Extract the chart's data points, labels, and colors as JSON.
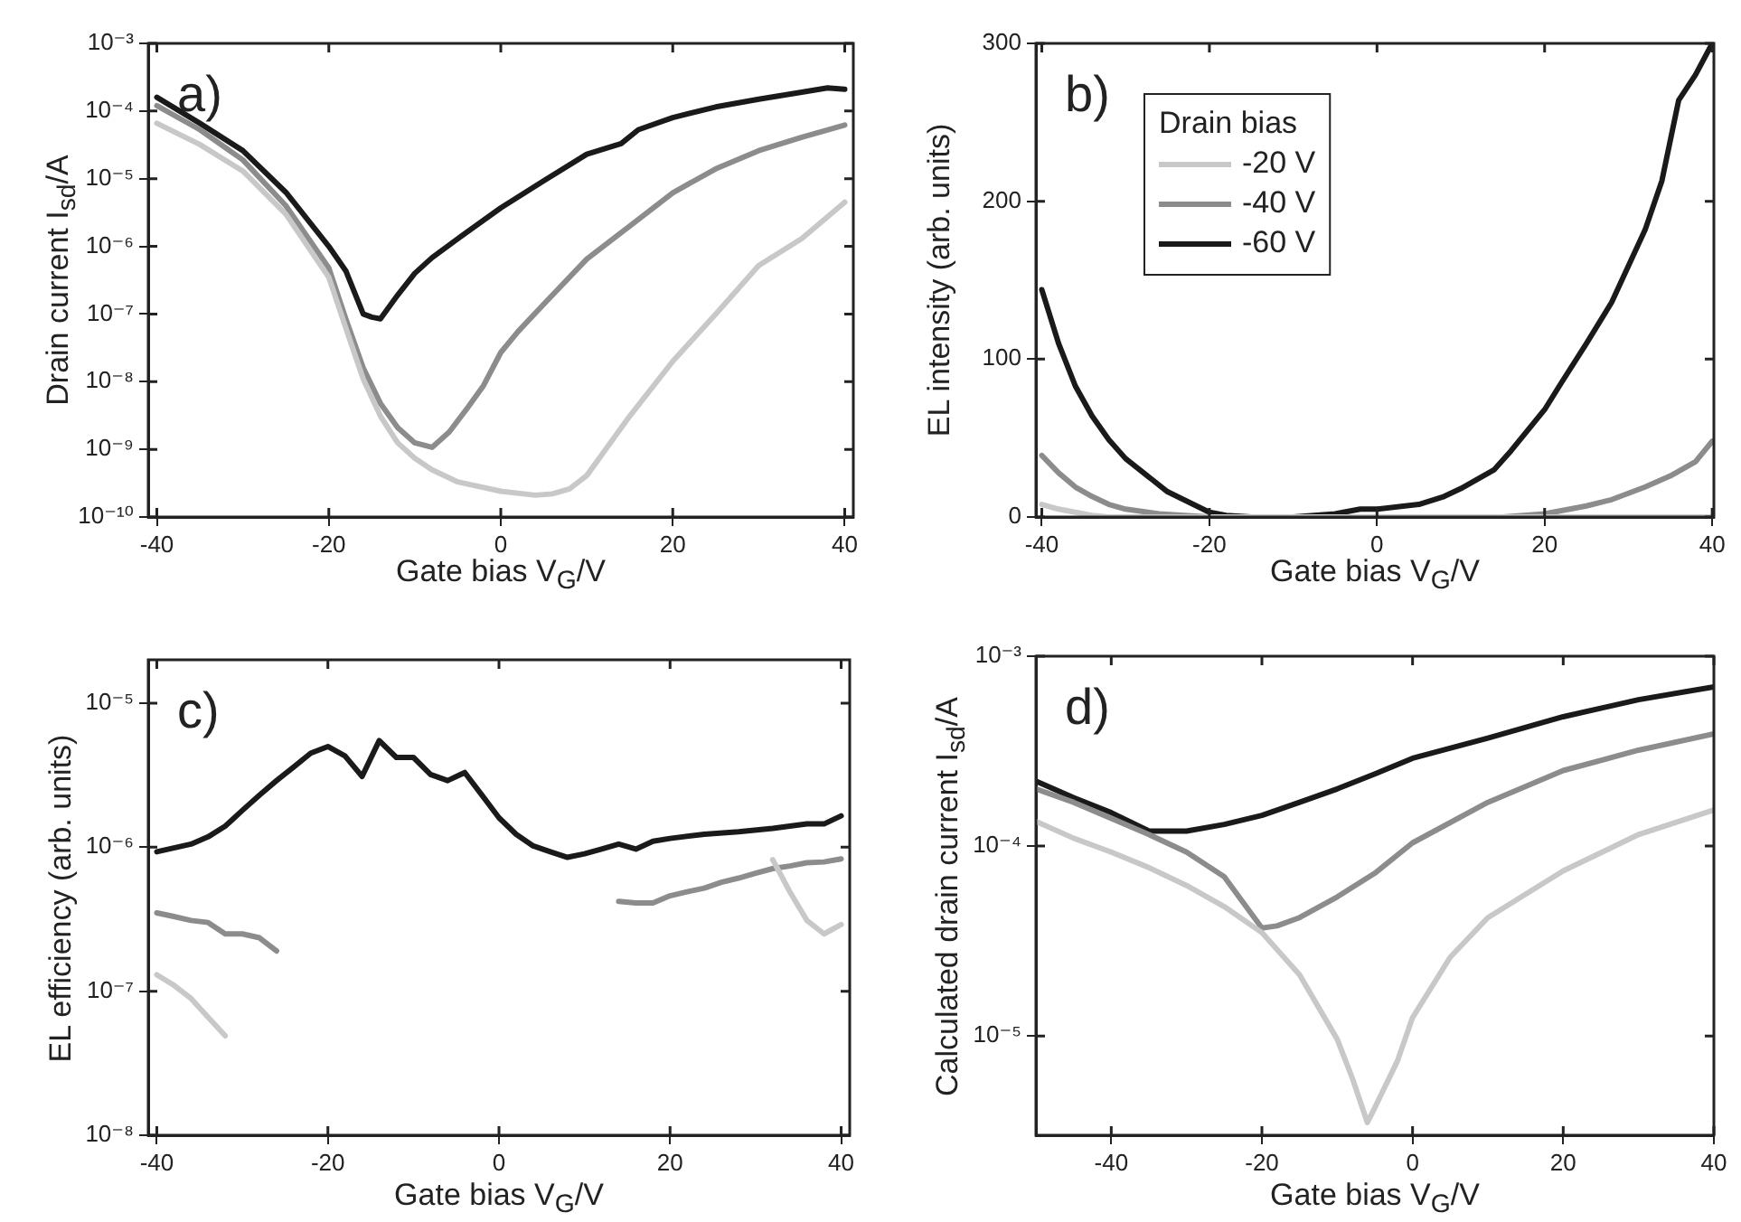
{
  "chart_data": [
    {
      "type": "line",
      "xlabel": "Gate bias V$_{G}$/V",
      "ylabel": "Drain current I$_{sd}$/A",
      "annotations": [
        "a)"
      ],
      "log": "y",
      "xlim": [
        -41,
        41
      ],
      "ylim": [
        1e-10,
        0.001
      ],
      "xticks": [
        -40,
        -20,
        0,
        20,
        40
      ],
      "yticks": [
        {
          "value": 1e-10,
          "label": "10⁻¹⁰"
        },
        {
          "value": 1e-09,
          "label": "10⁻⁹"
        },
        {
          "value": 1e-08,
          "label": "10⁻⁸"
        },
        {
          "value": 1e-07,
          "label": "10⁻⁷"
        },
        {
          "value": 1e-06,
          "label": "10⁻⁶"
        },
        {
          "value": 1e-05,
          "label": "10⁻⁵"
        },
        {
          "value": 0.0001,
          "label": "10⁻⁴"
        },
        {
          "value": 0.001,
          "label": "10⁻³"
        }
      ],
      "series": [
        {
          "color": "#c8c8c8",
          "x": [
            -40,
            -35,
            -30,
            -25,
            -20,
            -18,
            -16,
            -14,
            -12,
            -10,
            -8,
            -5,
            0,
            4,
            6,
            8,
            10,
            12,
            15,
            20,
            25,
            30,
            35,
            40
          ],
          "values": [
            6.6e-05,
            3.2e-05,
            1.3e-05,
            3e-06,
            3.5e-07,
            6.1e-08,
            1.1e-08,
            3.1e-09,
            1.25e-09,
            7.4e-10,
            5e-10,
            3.3e-10,
            2.4e-10,
            2.1e-10,
            2.2e-10,
            2.6e-10,
            4.1e-10,
            9.2e-10,
            3.1e-09,
            2e-08,
            1e-07,
            5.2e-07,
            1.3e-06,
            4.5e-06
          ]
        },
        {
          "color": "#8c8c8c",
          "x": [
            -40,
            -35,
            -30,
            -25,
            -20,
            -18,
            -16,
            -14,
            -12,
            -10,
            -8,
            -6,
            -4,
            -2,
            0,
            2,
            5,
            10,
            15,
            20,
            25,
            30,
            35,
            40
          ],
          "values": [
            0.00012,
            5.3e-05,
            1.9e-05,
            4e-06,
            4.8e-07,
            8.3e-08,
            1.6e-08,
            4.8e-09,
            2.1e-09,
            1.25e-09,
            1.07e-09,
            1.8e-09,
            3.9e-09,
            8.8e-09,
            2.7e-08,
            5.5e-08,
            1.4e-07,
            6.5e-07,
            2e-06,
            6.2e-06,
            1.4e-05,
            2.6e-05,
            4.1e-05,
            6.2e-05
          ]
        },
        {
          "color": "#1a1a1a",
          "x": [
            -40,
            -35,
            -30,
            -25,
            -20,
            -18,
            -16,
            -15,
            -14,
            -12,
            -10,
            -8,
            -5,
            0,
            5,
            10,
            14,
            16,
            20,
            25,
            30,
            35,
            38,
            40
          ],
          "values": [
            0.00016,
            6.6e-05,
            2.6e-05,
            6.3e-06,
            1e-06,
            4.3e-07,
            1e-07,
            9e-08,
            8.5e-08,
            1.9e-07,
            4e-07,
            6.8e-07,
            1.3e-06,
            3.7e-06,
            9.3e-06,
            2.3e-05,
            3.3e-05,
            5.3e-05,
            8e-05,
            0.000115,
            0.00015,
            0.00019,
            0.00022,
            0.00021
          ]
        }
      ]
    },
    {
      "type": "line",
      "xlabel": "Gate bias V$_{G}$/V",
      "ylabel": "EL intensity (arb. units)",
      "annotations": [
        "b)"
      ],
      "legend": "top left",
      "legend_title": "Drain bias",
      "xlim": [
        -40.7,
        40.2
      ],
      "ylim": [
        0,
        300
      ],
      "xticks": [
        -40,
        -20,
        0,
        20,
        40
      ],
      "yticks": [
        0,
        100,
        200,
        300
      ],
      "series": [
        {
          "name": "-20 V",
          "color": "#c8c8c8",
          "x": [
            -40,
            -38,
            -36,
            -34,
            -32,
            -28,
            0,
            20,
            40
          ],
          "values": [
            8,
            5,
            3,
            1,
            0,
            0,
            0,
            0,
            0
          ]
        },
        {
          "name": "-40 V",
          "color": "#8c8c8c",
          "x": [
            -40,
            -38,
            -36,
            -34,
            -32,
            -30,
            -26,
            -20,
            0,
            10,
            15,
            20,
            25,
            28,
            30,
            32,
            35,
            38,
            40
          ],
          "values": [
            39,
            28,
            19,
            13,
            8,
            5,
            2,
            0,
            0,
            0,
            0,
            2,
            7,
            11,
            15,
            19,
            26,
            35,
            48
          ]
        },
        {
          "name": "-60 V",
          "color": "#1a1a1a",
          "x": [
            -40,
            -38,
            -36,
            -34,
            -32,
            -30,
            -25,
            -20,
            -18,
            -15,
            -10,
            -5,
            -2,
            0,
            5,
            8,
            10,
            14,
            16,
            20,
            22,
            25,
            28,
            30,
            32,
            34,
            36,
            38,
            40
          ],
          "values": [
            144,
            110,
            83,
            64,
            49,
            37,
            16,
            3,
            1,
            0,
            0,
            2,
            5,
            5,
            8,
            13,
            18,
            30,
            42,
            68,
            85,
            110,
            136,
            159,
            182,
            213,
            264,
            280,
            300
          ]
        }
      ]
    },
    {
      "type": "line",
      "xlabel": "Gate bias V$_{G}$/V",
      "ylabel": "EL efficiency (arb. units)",
      "annotations": [
        "c)"
      ],
      "log": "y",
      "xlim": [
        -41,
        41
      ],
      "ylim": [
        1e-08,
        2e-05
      ],
      "xticks": [
        -40,
        -20,
        0,
        20,
        40
      ],
      "yticks": [
        {
          "value": 1e-08,
          "label": "10⁻⁸"
        },
        {
          "value": 1e-07,
          "label": "10⁻⁷"
        },
        {
          "value": 1e-06,
          "label": "10⁻⁶"
        },
        {
          "value": 1e-05,
          "label": "10⁻⁵"
        }
      ],
      "series": [
        {
          "color": "#c8c8c8",
          "x": [
            -40,
            -38,
            -36,
            -34,
            -32,
            0,
            32,
            34,
            36,
            38,
            40
          ],
          "values": [
            1.3e-07,
            1.1e-07,
            8.9e-08,
            6.6e-08,
            4.9e-08,
            null,
            8.2e-07,
            4.9e-07,
            3.1e-07,
            2.5e-07,
            2.9e-07
          ]
        },
        {
          "color": "#8c8c8c",
          "x": [
            -40,
            -38,
            -36,
            -34,
            -32,
            -30,
            -28,
            -26,
            0,
            14,
            16,
            18,
            20,
            22,
            24,
            26,
            28,
            30,
            32,
            34,
            36,
            38,
            40
          ],
          "values": [
            3.5e-07,
            3.3e-07,
            3.1e-07,
            3e-07,
            2.5e-07,
            2.5e-07,
            2.35e-07,
            1.9e-07,
            null,
            4.2e-07,
            4.1e-07,
            4.1e-07,
            4.6e-07,
            4.9e-07,
            5.2e-07,
            5.7e-07,
            6.1e-07,
            6.6e-07,
            7.1e-07,
            7.4e-07,
            7.8e-07,
            7.9e-07,
            8.3e-07
          ]
        },
        {
          "color": "#1a1a1a",
          "x": [
            -40,
            -36,
            -34,
            -32,
            -30,
            -28,
            -26,
            -24,
            -22,
            -20,
            -18,
            -16,
            -14,
            -12,
            -10,
            -8,
            -6,
            -4,
            -2,
            0,
            2,
            4,
            6,
            8,
            10,
            12,
            14,
            16,
            18,
            20,
            24,
            28,
            32,
            36,
            38,
            40
          ],
          "values": [
            9.3e-07,
            1.05e-06,
            1.18e-06,
            1.4e-06,
            1.8e-06,
            2.3e-06,
            2.9e-06,
            3.6e-06,
            4.5e-06,
            5e-06,
            4.3e-06,
            3.1e-06,
            5.5e-06,
            4.2e-06,
            4.2e-06,
            3.2e-06,
            2.9e-06,
            3.3e-06,
            2.3e-06,
            1.6e-06,
            1.23e-06,
            1.02e-06,
            9.3e-07,
            8.5e-07,
            9e-07,
            9.7e-07,
            1.05e-06,
            9.7e-07,
            1.1e-06,
            1.15e-06,
            1.23e-06,
            1.28e-06,
            1.35e-06,
            1.45e-06,
            1.45e-06,
            1.65e-06
          ]
        }
      ]
    },
    {
      "type": "line",
      "xlabel": "Gate bias V$_{G}$/V",
      "ylabel": "Calculated drain current I$_{sd}$/A",
      "annotations": [
        "d)"
      ],
      "log": "y",
      "xlim": [
        -50,
        40
      ],
      "ylim": [
        3e-06,
        0.001
      ],
      "xticks": [
        -40,
        -20,
        0,
        20,
        40
      ],
      "yticks": [
        {
          "value": 1e-05,
          "label": "10⁻⁵"
        },
        {
          "value": 0.0001,
          "label": "10⁻⁴"
        },
        {
          "value": 0.001,
          "label": "10⁻³"
        }
      ],
      "series": [
        {
          "color": "#c8c8c8",
          "x": [
            -50,
            -45,
            -40,
            -35,
            -30,
            -25,
            -20,
            -15,
            -10,
            -8,
            -6,
            -5,
            -2,
            0,
            5,
            10,
            20,
            30,
            40
          ],
          "values": [
            0.000135,
            0.00011,
            9.3e-05,
            7.7e-05,
            6.2e-05,
            4.8e-05,
            3.5e-05,
            2.1e-05,
            9.6e-06,
            6e-06,
            3.5e-06,
            4.2e-06,
            7.4e-06,
            1.25e-05,
            2.6e-05,
            4.2e-05,
            7.4e-05,
            0.000115,
            0.000155
          ]
        },
        {
          "color": "#8c8c8c",
          "x": [
            -50,
            -45,
            -40,
            -35,
            -30,
            -25,
            -20,
            -18,
            -15,
            -10,
            -5,
            0,
            10,
            20,
            30,
            40
          ],
          "values": [
            0.0002,
            0.00017,
            0.00014,
            0.000115,
            9.3e-05,
            6.9e-05,
            3.7e-05,
            3.8e-05,
            4.2e-05,
            5.4e-05,
            7.2e-05,
            0.000104,
            0.00017,
            0.00025,
            0.00032,
            0.00039
          ]
        },
        {
          "color": "#1a1a1a",
          "x": [
            -50,
            -45,
            -40,
            -35,
            -30,
            -25,
            -20,
            -15,
            -10,
            -5,
            0,
            10,
            20,
            30,
            40
          ],
          "values": [
            0.00022,
            0.00018,
            0.00015,
            0.00012,
            0.00012,
            0.00013,
            0.000145,
            0.00017,
            0.0002,
            0.00024,
            0.00029,
            0.00037,
            0.00048,
            0.00059,
            0.00069
          ]
        }
      ]
    }
  ]
}
